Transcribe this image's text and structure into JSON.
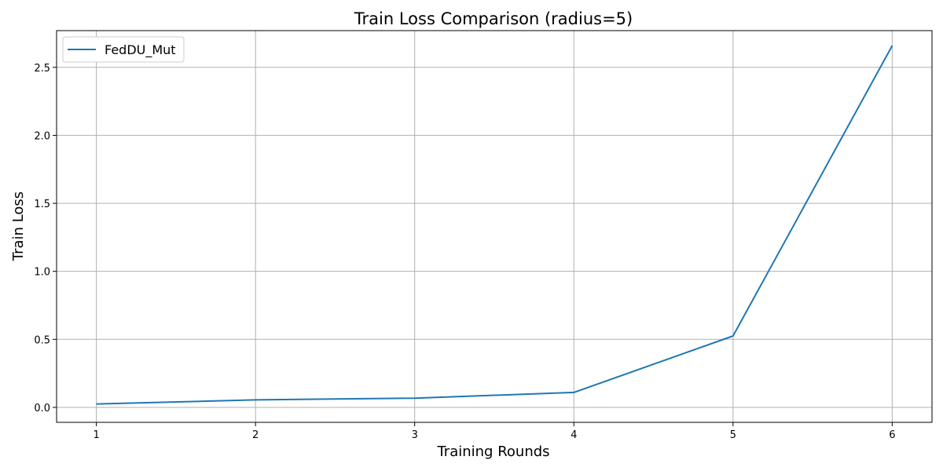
{
  "chart_data": {
    "type": "line",
    "title": "Train Loss Comparison (radius=5)",
    "xlabel": "Training Rounds",
    "ylabel": "Train Loss",
    "x": [
      1,
      2,
      3,
      4,
      5,
      6
    ],
    "xticks": [
      "1",
      "2",
      "3",
      "4",
      "5",
      "6"
    ],
    "yticks": [
      "0.0",
      "0.5",
      "1.0",
      "1.5",
      "2.0",
      "2.5"
    ],
    "xlim": [
      0.75,
      6.25
    ],
    "ylim": [
      -0.11,
      2.77
    ],
    "grid": true,
    "legend_position": "top-left",
    "series": [
      {
        "name": "FedDU_Mut",
        "color": "#1f77b4",
        "values": [
          0.025,
          0.055,
          0.068,
          0.11,
          0.525,
          2.66
        ]
      }
    ]
  }
}
